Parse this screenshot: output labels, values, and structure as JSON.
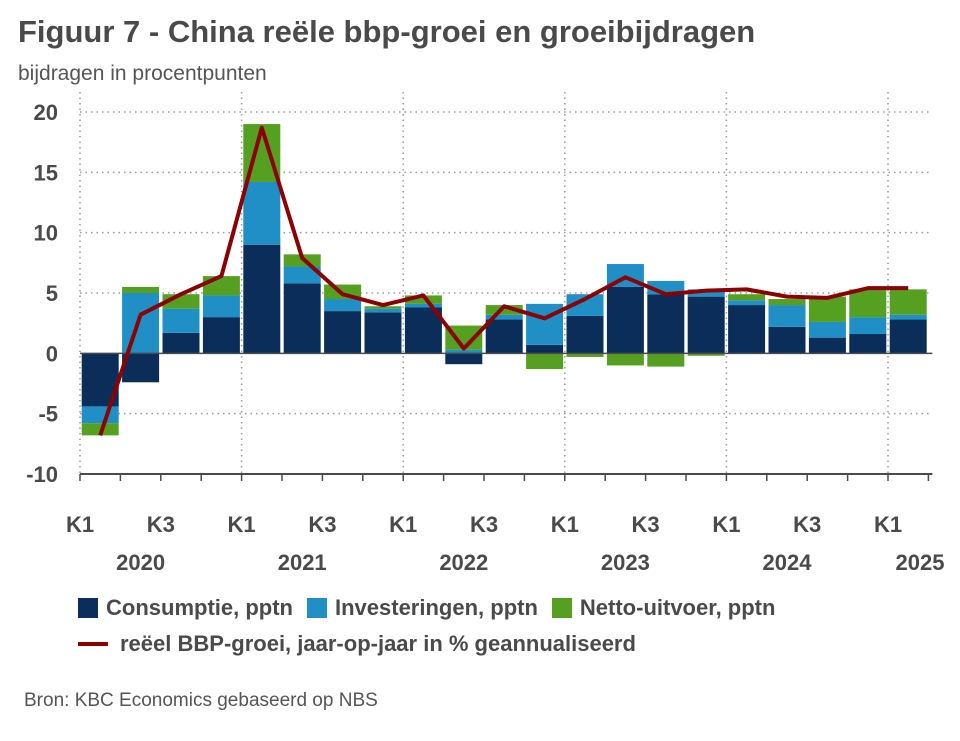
{
  "title": "Figuur 7 - China reële bbp-groei en groeibijdragen",
  "subtitle": "bijdragen in procentpunten",
  "source": "Bron: KBC Economics gebaseerd op NBS",
  "colors": {
    "consumptie": "#0a2d5a",
    "investeringen": "#1f8fc6",
    "netto": "#56a021",
    "line": "#8b0000",
    "grid": "#9a9a9a",
    "axis": "#4a4a4a"
  },
  "legend": {
    "consumptie": "Consumptie, pptn",
    "investeringen": "Investeringen, pptn",
    "netto": "Netto-uitvoer, pptn",
    "line": "reëel BBP-groei, jaar-op-jaar in % geannualiseerd"
  },
  "chart_data": {
    "type": "bar",
    "stacked": true,
    "quarters": [
      "K1 2020",
      "K2 2020",
      "K3 2020",
      "K4 2020",
      "K1 2021",
      "K2 2021",
      "K3 2021",
      "K4 2021",
      "K1 2022",
      "K2 2022",
      "K3 2022",
      "K4 2022",
      "K1 2023",
      "K2 2023",
      "K3 2023",
      "K4 2023",
      "K1 2024",
      "K2 2024",
      "K3 2024",
      "K4 2024",
      "K1 2025"
    ],
    "x_tick_labels": [
      "K1",
      "K3",
      "K1",
      "K3",
      "K1",
      "K3",
      "K1",
      "K3",
      "K1",
      "K3",
      "K1"
    ],
    "x_tick_quarter_index": [
      0,
      2,
      4,
      6,
      8,
      10,
      12,
      14,
      16,
      18,
      20
    ],
    "years": [
      "2020",
      "2021",
      "2022",
      "2023",
      "2024",
      "2025"
    ],
    "year_quarter_index": [
      1.5,
      5.5,
      9.5,
      13.5,
      17.5,
      21.2
    ],
    "y_ticks": [
      "20",
      "15",
      "10",
      "5",
      "0",
      "-5",
      "-10"
    ],
    "y_tick_values": [
      20,
      15,
      10,
      5,
      0,
      -5,
      -10
    ],
    "ylim": [
      -11,
      20
    ],
    "series": [
      {
        "name": "Consumptie, pptn",
        "values": [
          -4.4,
          -2.4,
          1.7,
          3.0,
          9.0,
          5.8,
          3.5,
          3.4,
          3.8,
          -0.9,
          2.8,
          0.7,
          3.1,
          5.5,
          4.9,
          4.7,
          4.0,
          2.2,
          1.3,
          1.6,
          2.8
        ]
      },
      {
        "name": "Investeringen, pptn",
        "values": [
          -1.4,
          5.0,
          2.0,
          1.8,
          5.2,
          1.4,
          1.0,
          0.3,
          0.3,
          0.3,
          0.4,
          3.4,
          1.8,
          1.9,
          1.1,
          0.6,
          0.4,
          1.8,
          1.3,
          1.4,
          0.4
        ]
      },
      {
        "name": "Netto-uitvoer, pptn",
        "values": [
          -1.0,
          0.5,
          1.2,
          1.6,
          4.8,
          1.0,
          1.2,
          0.2,
          0.7,
          2.0,
          0.8,
          -1.3,
          -0.3,
          -1.0,
          -1.1,
          -0.2,
          0.5,
          0.5,
          2.1,
          2.3,
          2.1
        ]
      }
    ],
    "line": {
      "name": "reëel BBP-groei, jaar-op-jaar in % geannualiseerd",
      "values": [
        -6.8,
        3.2,
        4.9,
        6.4,
        18.7,
        7.9,
        4.9,
        4.0,
        4.8,
        0.4,
        3.9,
        2.9,
        4.5,
        6.3,
        4.9,
        5.2,
        5.3,
        4.7,
        4.6,
        5.4,
        5.4
      ]
    }
  }
}
